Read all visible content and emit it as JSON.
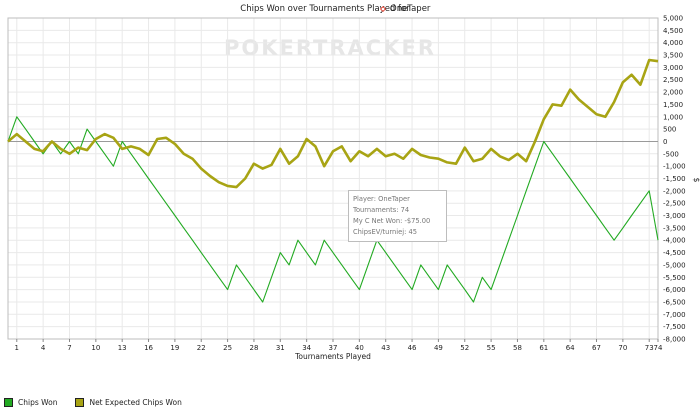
{
  "chart_data": {
    "type": "line",
    "title": "Chips Won over Tournaments Played for",
    "title_user": "OneTaper",
    "xlabel": "Tournaments Played",
    "ylabel": "$",
    "watermark": "POKERTRACKER",
    "x_ticks": [
      "1",
      "4",
      "7",
      "10",
      "13",
      "16",
      "19",
      "22",
      "25",
      "28",
      "31",
      "34",
      "37",
      "40",
      "43",
      "46",
      "49",
      "52",
      "55",
      "58",
      "61",
      "64",
      "67",
      "70",
      "73",
      "74"
    ],
    "y_ticks": [
      5000,
      4500,
      4000,
      3500,
      3000,
      2500,
      2000,
      1500,
      1000,
      500,
      0,
      -500,
      -1000,
      -1500,
      -2000,
      -2500,
      -3000,
      -3500,
      -4000,
      -4500,
      -5000,
      -5500,
      -6000,
      -6500,
      -7000,
      -7500,
      -8000
    ],
    "y_tick_labels": [
      "5,000",
      "4,500",
      "4,000",
      "3,500",
      "3,000",
      "2,500",
      "2,000",
      "1,500",
      "1,000",
      "500",
      "0",
      "-500",
      "-1,000",
      "-1,500",
      "-2,000",
      "-2,500",
      "-3,000",
      "-3,500",
      "-4,000",
      "-4,500",
      "-5,000",
      "-5,500",
      "-6,000",
      "-6,500",
      "-7,000",
      "-7,500",
      "-8,000"
    ],
    "ylim": [
      -8000,
      5000
    ],
    "xlim": [
      0,
      74
    ],
    "grid": true,
    "legend_position": "bottom-left",
    "series": [
      {
        "name": "Chips Won",
        "color": "#22aa22",
        "x": [
          0,
          1,
          2,
          3,
          4,
          5,
          6,
          7,
          8,
          9,
          10,
          11,
          12,
          13,
          14,
          15,
          16,
          17,
          18,
          19,
          20,
          21,
          22,
          23,
          24,
          25,
          26,
          27,
          28,
          29,
          30,
          31,
          32,
          33,
          34,
          35,
          36,
          37,
          38,
          39,
          40,
          41,
          42,
          43,
          44,
          45,
          46,
          47,
          48,
          49,
          50,
          51,
          52,
          53,
          54,
          55,
          56,
          57,
          58,
          59,
          60,
          61,
          62,
          63,
          64,
          65,
          66,
          67,
          68,
          69,
          70,
          71,
          72,
          73,
          74
        ],
        "y": [
          0,
          1000,
          500,
          0,
          -500,
          0,
          -500,
          0,
          -500,
          500,
          0,
          -500,
          -1000,
          0,
          -500,
          -1000,
          -1500,
          -2000,
          -2500,
          -3000,
          -3500,
          -4000,
          -4500,
          -5000,
          -5500,
          -6000,
          -5000,
          -5500,
          -6000,
          -6500,
          -5500,
          -4500,
          -5000,
          -4000,
          -4500,
          -5000,
          -4000,
          -4500,
          -5000,
          -5500,
          -6000,
          -5000,
          -4000,
          -4500,
          -5000,
          -5500,
          -6000,
          -5000,
          -5500,
          -6000,
          -5000,
          -5500,
          -6000,
          -6500,
          -5500,
          -6000,
          -5000,
          -4000,
          -3000,
          -2000,
          -1000,
          0,
          -500,
          -1000,
          -1500,
          -2000,
          -2500,
          -3000,
          -3500,
          -4000,
          -3500,
          -3000,
          -2500,
          -2000,
          -4000
        ]
      },
      {
        "name": "Net Expected Chips Won",
        "color": "#a8a414",
        "x": [
          0,
          1,
          2,
          3,
          4,
          5,
          6,
          7,
          8,
          9,
          10,
          11,
          12,
          13,
          14,
          15,
          16,
          17,
          18,
          19,
          20,
          21,
          22,
          23,
          24,
          25,
          26,
          27,
          28,
          29,
          30,
          31,
          32,
          33,
          34,
          35,
          36,
          37,
          38,
          39,
          40,
          41,
          42,
          43,
          44,
          45,
          46,
          47,
          48,
          49,
          50,
          51,
          52,
          53,
          54,
          55,
          56,
          57,
          58,
          59,
          60,
          61,
          62,
          63,
          64,
          65,
          66,
          67,
          68,
          69,
          70,
          71,
          72,
          73,
          74
        ],
        "y": [
          0,
          300,
          0,
          -300,
          -400,
          0,
          -300,
          -500,
          -250,
          -350,
          100,
          300,
          150,
          -300,
          -200,
          -300,
          -550,
          100,
          150,
          -100,
          -500,
          -700,
          -1100,
          -1400,
          -1650,
          -1800,
          -1850,
          -1500,
          -900,
          -1100,
          -950,
          -300,
          -900,
          -600,
          100,
          -200,
          -1000,
          -400,
          -200,
          -800,
          -400,
          -600,
          -300,
          -600,
          -500,
          -700,
          -300,
          -550,
          -650,
          -700,
          -850,
          -900,
          -250,
          -800,
          -700,
          -300,
          -600,
          -750,
          -500,
          -800,
          0,
          900,
          1500,
          1450,
          2100,
          1700,
          1400,
          1100,
          1000,
          1600,
          2400,
          2700,
          2300,
          3300,
          3250
        ]
      }
    ]
  },
  "legend": [
    {
      "label": "Chips Won",
      "color": "#22aa22"
    },
    {
      "label": "Net Expected Chips Won",
      "color": "#a8a414"
    }
  ],
  "tooltip": {
    "player": "Player: OneTaper",
    "tournaments": "Tournaments: 74",
    "net_won": "My C Net Won: -$75.00",
    "chips_ev": "ChipsEV/turniej: 45"
  }
}
